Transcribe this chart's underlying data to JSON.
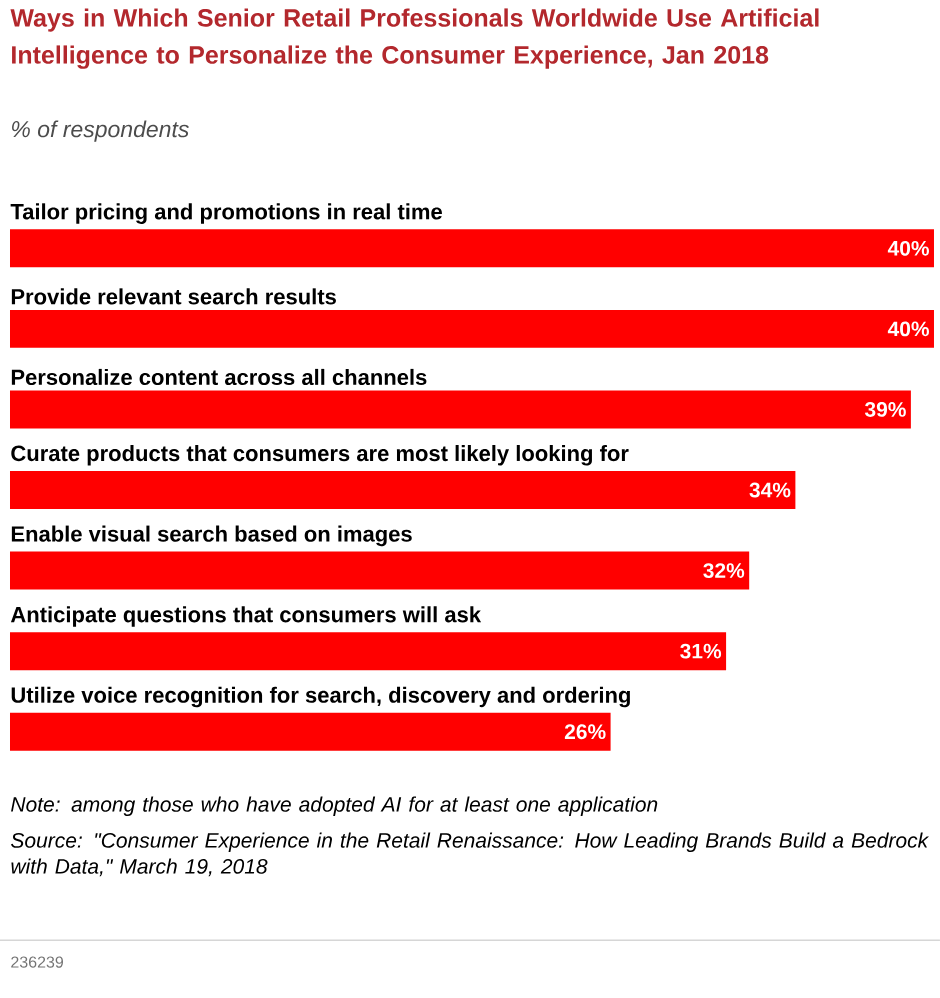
{
  "chart_data": {
    "type": "bar",
    "orientation": "horizontal",
    "title": "Ways in Which Senior Retail Professionals Worldwide Use Artificial Intelligence to Personalize the Consumer Experience, Jan 2018",
    "subtitle": "% of respondents",
    "categories": [
      "Tailor pricing and promotions in real time",
      "Provide relevant search results",
      "Personalize content across all channels",
      "Curate products that consumers are most likely looking for",
      "Enable visual search based on images",
      "Anticipate questions that consumers will ask",
      "Utilize voice recognition for search, discovery and ordering"
    ],
    "values": [
      40,
      40,
      39,
      34,
      32,
      31,
      26
    ],
    "value_labels": [
      "40%",
      "40%",
      "39%",
      "34%",
      "32%",
      "31%",
      "26%"
    ],
    "color": "#ff0000",
    "annotations": [
      "Note: among those who have adopted AI for at least one application",
      "Source: \"Consumer Experience in the Retail Renaissance: How Leading Brands Build a Bedrock with Data,\" March 19, 2018",
      "236239"
    ]
  }
}
